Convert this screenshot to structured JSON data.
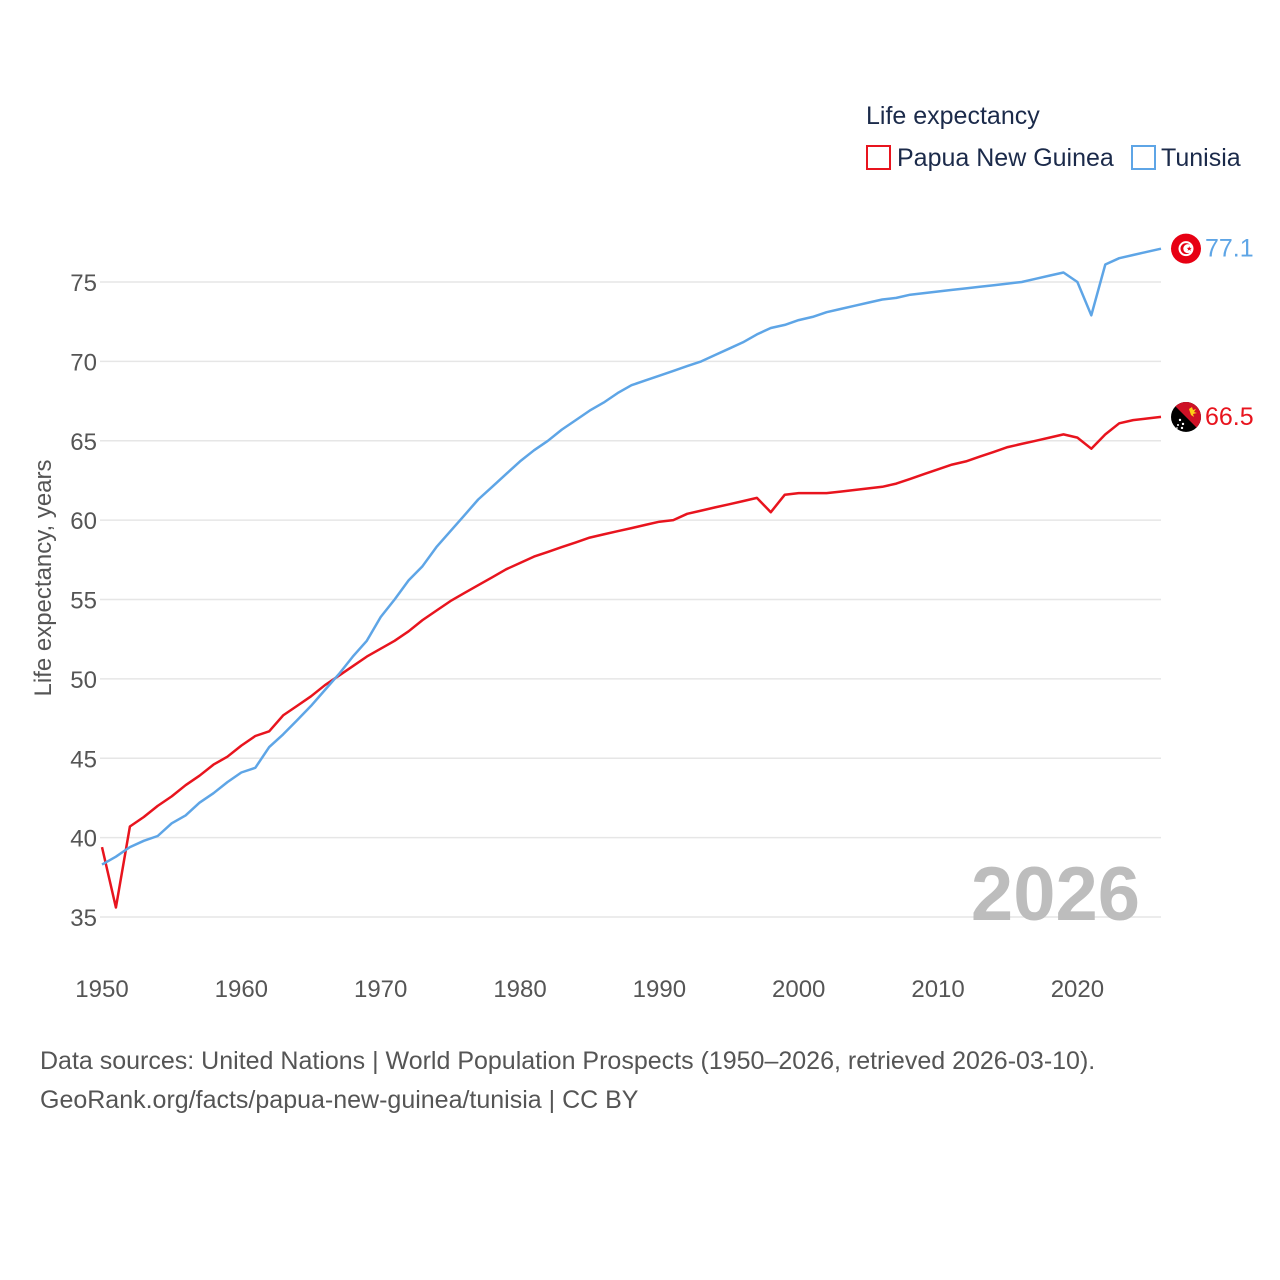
{
  "chart_data": {
    "type": "line",
    "title": "",
    "legend_title": "Life expectancy",
    "legend_position": "top-right",
    "ylabel": "Life expectancy, years",
    "xlabel": "",
    "xlim": [
      1950,
      2026
    ],
    "ylim": [
      33,
      79
    ],
    "y_ticks": [
      35,
      40,
      45,
      50,
      55,
      60,
      65,
      70,
      75
    ],
    "x_ticks": [
      1950,
      1960,
      1970,
      1980,
      1990,
      2000,
      2010,
      2020
    ],
    "grid": true,
    "year_label": "2026",
    "series": [
      {
        "name": "Papua New Guinea",
        "color": "#e8141e",
        "end_label": "66.5",
        "flag": "papua-new-guinea-flag-icon",
        "x": [
          1950,
          1951,
          1952,
          1953,
          1954,
          1955,
          1956,
          1957,
          1958,
          1959,
          1960,
          1961,
          1962,
          1963,
          1964,
          1965,
          1966,
          1967,
          1968,
          1969,
          1970,
          1971,
          1972,
          1973,
          1974,
          1975,
          1976,
          1977,
          1978,
          1979,
          1980,
          1981,
          1982,
          1983,
          1984,
          1985,
          1986,
          1987,
          1988,
          1989,
          1990,
          1991,
          1992,
          1993,
          1994,
          1995,
          1996,
          1997,
          1998,
          1999,
          2000,
          2001,
          2002,
          2003,
          2004,
          2005,
          2006,
          2007,
          2008,
          2009,
          2010,
          2011,
          2012,
          2013,
          2014,
          2015,
          2016,
          2017,
          2018,
          2019,
          2020,
          2021,
          2022,
          2023,
          2024,
          2025,
          2026
        ],
        "y": [
          39.4,
          35.6,
          40.7,
          41.3,
          42.0,
          42.6,
          43.3,
          43.9,
          44.6,
          45.1,
          45.8,
          46.4,
          46.7,
          47.7,
          48.3,
          48.9,
          49.6,
          50.2,
          50.8,
          51.4,
          51.9,
          52.4,
          53.0,
          53.7,
          54.3,
          54.9,
          55.4,
          55.9,
          56.4,
          56.9,
          57.3,
          57.7,
          58.0,
          58.3,
          58.6,
          58.9,
          59.1,
          59.3,
          59.5,
          59.7,
          59.9,
          60.0,
          60.4,
          60.6,
          60.8,
          61.0,
          61.2,
          61.4,
          60.5,
          61.6,
          61.7,
          61.7,
          61.7,
          61.8,
          61.9,
          62.0,
          62.1,
          62.3,
          62.6,
          62.9,
          63.2,
          63.5,
          63.7,
          64.0,
          64.3,
          64.6,
          64.8,
          65.0,
          65.2,
          65.4,
          65.2,
          64.5,
          65.4,
          66.1,
          66.3,
          66.4,
          66.5
        ]
      },
      {
        "name": "Tunisia",
        "color": "#5ea5e6",
        "end_label": "77.1",
        "flag": "tunisia-flag-icon",
        "x": [
          1950,
          1951,
          1952,
          1953,
          1954,
          1955,
          1956,
          1957,
          1958,
          1959,
          1960,
          1961,
          1962,
          1963,
          1964,
          1965,
          1966,
          1967,
          1968,
          1969,
          1970,
          1971,
          1972,
          1973,
          1974,
          1975,
          1976,
          1977,
          1978,
          1979,
          1980,
          1981,
          1982,
          1983,
          1984,
          1985,
          1986,
          1987,
          1988,
          1989,
          1990,
          1991,
          1992,
          1993,
          1994,
          1995,
          1996,
          1997,
          1998,
          1999,
          2000,
          2001,
          2002,
          2003,
          2004,
          2005,
          2006,
          2007,
          2008,
          2009,
          2010,
          2011,
          2012,
          2013,
          2014,
          2015,
          2016,
          2017,
          2018,
          2019,
          2020,
          2021,
          2022,
          2023,
          2024,
          2025,
          2026
        ],
        "y": [
          38.3,
          38.8,
          39.4,
          39.8,
          40.1,
          40.9,
          41.4,
          42.2,
          42.8,
          43.5,
          44.1,
          44.4,
          45.7,
          46.5,
          47.4,
          48.3,
          49.3,
          50.3,
          51.4,
          52.4,
          53.9,
          55.0,
          56.2,
          57.1,
          58.3,
          59.3,
          60.3,
          61.3,
          62.1,
          62.9,
          63.7,
          64.4,
          65.0,
          65.7,
          66.3,
          66.9,
          67.4,
          68.0,
          68.5,
          68.8,
          69.1,
          69.4,
          69.7,
          70.0,
          70.4,
          70.8,
          71.2,
          71.7,
          72.1,
          72.3,
          72.6,
          72.8,
          73.1,
          73.3,
          73.5,
          73.7,
          73.9,
          74.0,
          74.2,
          74.3,
          74.4,
          74.5,
          74.6,
          74.7,
          74.8,
          74.9,
          75.0,
          75.2,
          75.4,
          75.6,
          75.0,
          72.9,
          76.1,
          76.5,
          76.7,
          76.9,
          77.1
        ]
      }
    ]
  },
  "source": {
    "line1": "Data sources: United Nations | World Population Prospects (1950–2026, retrieved 2026-03-10).",
    "line2": "GeoRank.org/facts/papua-new-guinea/tunisia | CC BY"
  }
}
